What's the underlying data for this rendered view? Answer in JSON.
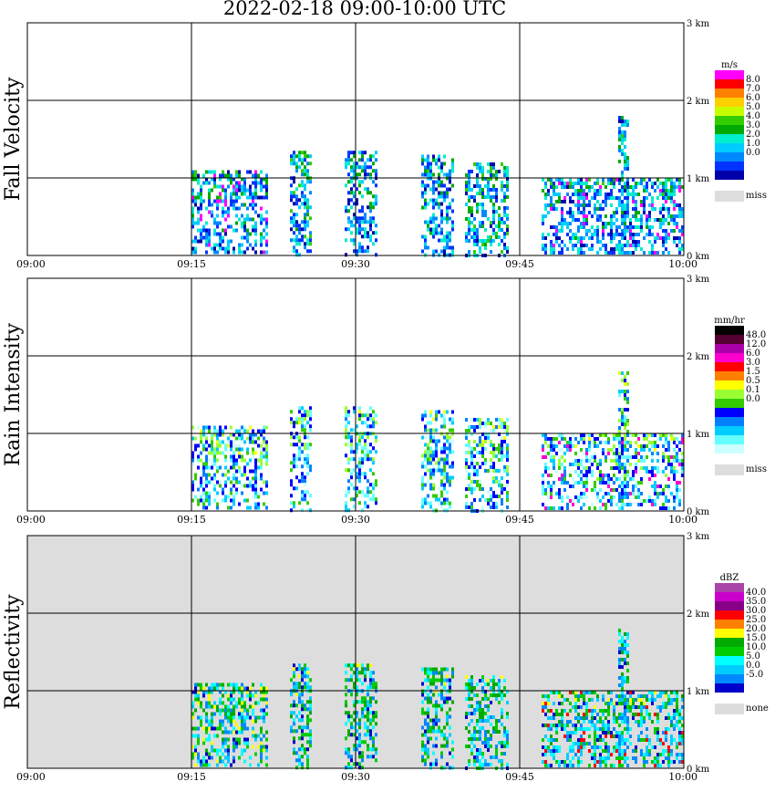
{
  "title": "2022-02-18   09:00-10:00 UTC",
  "chart_data": [
    {
      "type": "heatmap",
      "ylabel": "Fall Velocity",
      "x_ticks": [
        "09:00",
        "09:15",
        "09:30",
        "09:45",
        "10:00"
      ],
      "y_ticks": [
        "0 km",
        "1 km",
        "2 km",
        "3 km"
      ],
      "xlim": [
        "09:00",
        "10:00"
      ],
      "ylim_km": [
        0,
        3.0
      ],
      "background": "#ffffff",
      "legend": {
        "unit": "m/s",
        "labels": [
          "8.0",
          "7.0",
          "6.0",
          "5.0",
          "4.0",
          "3.0",
          "2.0",
          "1.0",
          "0.0"
        ],
        "colors": [
          "#ff00ff",
          "#ff0000",
          "#ff8000",
          "#ffd000",
          "#c8ff00",
          "#33cc00",
          "#00aa00",
          "#00eecc",
          "#00ccff",
          "#0088ff",
          "#0033ff",
          "#0000aa"
        ],
        "missing_label": "miss",
        "missing_color": "#dddddd"
      },
      "cell_color_index": [
        [
          0,
          0,
          0,
          0,
          0,
          0,
          0,
          0,
          0,
          0,
          0,
          0,
          0,
          0,
          0,
          0,
          0,
          0,
          0,
          0,
          0,
          0,
          0,
          0,
          0,
          0,
          0,
          0,
          0,
          0,
          0,
          0,
          0,
          0,
          0,
          0,
          0,
          0,
          0,
          0
        ],
        [
          0,
          0,
          0,
          0,
          0,
          0,
          0,
          0,
          0,
          0,
          0,
          0,
          0,
          0,
          0,
          0,
          0,
          0,
          0,
          0,
          0,
          0,
          0,
          0,
          0,
          0,
          0,
          0,
          0,
          0,
          0,
          0,
          0,
          0,
          0,
          0,
          0,
          0,
          0,
          0
        ],
        [
          0,
          0,
          0,
          0,
          0,
          0,
          0,
          0,
          0,
          0,
          0,
          0,
          0,
          0,
          0,
          0,
          0,
          0,
          0,
          0,
          0,
          0,
          0,
          0,
          0,
          0,
          0,
          0,
          0,
          0,
          0,
          0,
          0,
          0,
          0,
          0,
          0,
          0,
          0,
          0
        ],
        [
          0,
          0,
          0,
          0,
          0,
          0,
          0,
          0,
          0,
          0,
          0,
          0,
          0,
          0,
          0,
          0,
          0,
          0,
          0,
          0,
          0,
          0,
          0,
          0,
          0,
          0,
          0,
          0,
          0,
          0,
          0,
          0,
          0,
          0,
          0,
          0,
          0,
          0,
          0,
          0
        ],
        [
          0,
          0,
          0,
          0,
          0,
          0,
          0,
          0,
          0,
          0,
          0,
          0,
          0,
          0,
          0,
          0,
          0,
          0,
          0,
          0,
          0,
          0,
          0,
          0,
          0,
          0,
          0,
          0,
          0,
          0,
          0,
          0,
          0,
          0,
          0,
          0,
          0,
          0,
          0,
          0
        ],
        [
          0,
          0,
          0,
          0,
          0,
          0,
          0,
          0,
          0,
          0,
          0,
          0,
          0,
          0,
          0,
          0,
          0,
          0,
          0,
          0,
          0,
          0,
          0,
          0,
          0,
          0,
          0,
          0,
          0,
          0,
          0,
          0,
          0,
          0,
          0,
          0,
          0,
          0,
          0,
          0
        ],
        [
          0,
          0,
          0,
          0,
          0,
          0,
          0,
          0,
          0,
          0,
          0,
          0,
          0,
          0,
          0,
          0,
          0,
          0,
          0,
          0,
          0,
          0,
          0,
          0,
          0,
          0,
          0,
          0,
          0,
          0,
          0,
          0,
          0,
          0,
          0,
          0,
          0,
          0,
          0,
          0
        ],
        [
          0,
          0,
          0,
          0,
          0,
          0,
          0,
          0,
          0,
          0,
          0,
          0,
          0,
          0,
          0,
          0,
          0,
          0,
          0,
          0,
          0,
          0,
          0,
          0,
          0,
          0,
          0,
          0,
          0,
          0,
          0,
          0,
          0,
          0,
          0,
          0,
          0,
          0,
          0,
          0
        ],
        [
          0,
          0,
          0,
          0,
          0,
          0,
          0,
          0,
          0,
          0,
          0,
          0,
          0,
          0,
          0,
          0,
          0,
          0,
          0,
          0,
          0,
          0,
          0,
          0,
          0,
          0,
          0,
          0,
          0,
          0,
          0,
          0,
          0,
          0,
          0,
          0,
          0,
          0,
          0,
          0
        ],
        [
          0,
          0,
          0,
          0,
          0,
          0,
          0,
          0,
          0,
          0,
          0,
          0,
          0,
          0,
          0,
          0,
          0,
          0,
          0,
          0,
          0,
          0,
          0,
          0,
          0,
          0,
          0,
          0,
          0,
          0,
          0,
          0,
          0,
          0,
          0,
          0,
          0,
          0,
          0,
          0
        ],
        [
          0,
          0,
          0,
          0,
          0,
          0,
          0,
          0,
          0,
          0,
          0,
          0,
          0,
          0,
          0,
          0,
          0,
          0,
          0,
          0,
          0,
          0,
          0,
          0,
          0,
          0,
          0,
          0,
          0,
          0,
          0,
          0,
          0,
          0,
          0,
          0,
          0,
          0,
          0,
          0
        ],
        [
          0,
          0,
          0,
          0,
          0,
          0,
          0,
          0,
          0,
          0,
          0,
          0,
          0,
          0,
          0,
          0,
          0,
          0,
          0,
          0,
          0,
          0,
          0,
          0,
          0,
          0,
          0,
          0,
          0,
          0,
          0,
          0,
          0,
          0,
          0,
          0,
          0,
          0,
          0,
          0
        ],
        [
          0,
          0,
          0,
          0,
          0,
          0,
          0,
          0,
          0,
          0,
          0,
          0,
          0,
          0,
          0,
          0,
          0,
          0,
          0,
          0,
          0,
          0,
          0,
          0,
          0,
          0,
          0,
          0,
          0,
          0,
          0,
          0,
          0,
          0,
          0,
          0,
          0,
          0,
          0,
          0
        ],
        [
          0,
          0,
          0,
          0,
          0,
          0,
          0,
          0,
          0,
          0,
          0,
          0,
          0,
          0,
          0,
          0,
          0,
          0,
          0,
          0,
          0,
          0,
          0,
          0,
          0,
          0,
          0,
          0,
          0,
          0,
          0,
          0,
          0,
          0,
          0,
          0,
          0,
          0,
          0,
          0
        ],
        [
          0,
          0,
          0,
          0,
          0,
          0,
          0,
          0,
          0,
          0,
          0,
          0,
          0,
          0,
          0,
          0,
          0,
          0,
          0,
          0,
          0,
          0,
          0,
          0,
          0,
          0,
          0,
          0,
          0,
          0,
          0,
          0,
          0,
          0,
          0,
          0,
          0,
          0,
          0,
          0
        ],
        [
          0,
          0,
          0,
          0,
          0,
          0,
          0,
          0,
          0,
          0,
          0,
          0,
          0,
          0,
          0,
          0,
          0,
          0,
          0,
          0,
          0,
          0,
          0,
          0,
          0,
          0,
          0,
          0,
          0,
          0,
          0,
          0,
          0,
          0,
          0,
          0,
          0,
          0,
          0,
          0
        ],
        [
          0,
          0,
          0,
          0,
          0,
          0,
          0,
          0,
          0,
          0,
          0,
          0,
          0,
          0,
          0,
          0,
          0,
          0,
          0,
          0,
          0,
          0,
          0,
          0,
          0,
          0,
          0,
          0,
          0,
          0,
          0,
          0,
          0,
          0,
          0,
          0,
          0,
          0,
          0,
          0
        ],
        [
          0,
          0,
          0,
          0,
          0,
          0,
          0,
          0,
          0,
          0,
          0,
          0,
          0,
          0,
          0,
          0,
          0,
          0,
          0,
          0,
          0,
          0,
          0,
          0,
          0,
          0,
          0,
          0,
          0,
          0,
          0,
          0,
          0,
          0,
          0,
          0,
          0,
          0,
          0,
          0
        ],
        [
          0,
          0,
          0,
          0,
          0,
          0,
          0,
          0,
          0,
          0,
          0,
          0,
          0,
          0,
          0,
          0,
          0,
          0,
          0,
          0,
          0,
          0,
          0,
          0,
          0,
          0,
          0,
          0,
          0,
          0,
          0,
          0,
          0,
          0,
          0,
          0,
          0,
          0,
          0,
          0
        ],
        [
          0,
          0,
          0,
          0,
          0,
          0,
          0,
          0,
          0,
          0,
          0,
          0,
          0,
          0,
          0,
          0,
          0,
          0,
          0,
          0,
          0,
          0,
          0,
          0,
          0,
          0,
          0,
          0,
          0,
          0,
          0,
          0,
          0,
          0,
          0,
          0,
          0,
          0,
          0,
          0
        ]
      ],
      "echo_regions": [
        {
          "start": "09:15",
          "end": "09:22",
          "top_km": 1.1,
          "core_color": "#ff00ff"
        },
        {
          "start": "09:24",
          "end": "09:26",
          "top_km": 1.35,
          "core_color": "#33cc00"
        },
        {
          "start": "09:29",
          "end": "09:32",
          "top_km": 1.35,
          "core_color": "#0033ff"
        },
        {
          "start": "09:36",
          "end": "09:39",
          "top_km": 1.3,
          "core_color": "#0033ff"
        },
        {
          "start": "09:40",
          "end": "09:44",
          "top_km": 1.2,
          "core_color": "#33cc00"
        },
        {
          "start": "09:47",
          "end": "10:00",
          "top_km": 1.0,
          "core_color": "#ff00ff"
        },
        {
          "start": "09:54",
          "end": "09:55",
          "top_km": 1.8,
          "core_color": "#0088ff"
        }
      ]
    },
    {
      "type": "heatmap",
      "ylabel": "Rain Intensity",
      "x_ticks": [
        "09:00",
        "09:15",
        "09:30",
        "09:45",
        "10:00"
      ],
      "y_ticks": [
        "0 km",
        "1 km",
        "2 km",
        "3 km"
      ],
      "xlim": [
        "09:00",
        "10:00"
      ],
      "ylim_km": [
        0,
        3.0
      ],
      "background": "#ffffff",
      "legend": {
        "unit": "mm/hr",
        "labels": [
          "48.0",
          "12.0",
          "6.0",
          "3.0",
          "1.5",
          "0.5",
          "0.1",
          "0.0"
        ],
        "colors": [
          "#000000",
          "#550033",
          "#aa00aa",
          "#ff00cc",
          "#ff0000",
          "#ff8000",
          "#ffff00",
          "#99ff33",
          "#33cc00",
          "#0000ff",
          "#0080ff",
          "#00ccff",
          "#66ffff",
          "#ccffff"
        ],
        "missing_label": "miss",
        "missing_color": "#dddddd"
      },
      "echo_regions": [
        {
          "start": "09:15",
          "end": "09:22",
          "top_km": 1.1,
          "core_color": "#0000ff"
        },
        {
          "start": "09:24",
          "end": "09:26",
          "top_km": 1.35,
          "core_color": "#0000ff"
        },
        {
          "start": "09:29",
          "end": "09:32",
          "top_km": 1.35,
          "core_color": "#66ffff"
        },
        {
          "start": "09:36",
          "end": "09:39",
          "top_km": 1.3,
          "core_color": "#0080ff"
        },
        {
          "start": "09:40",
          "end": "09:44",
          "top_km": 1.2,
          "core_color": "#0000ff"
        },
        {
          "start": "09:47",
          "end": "10:00",
          "top_km": 1.0,
          "core_color": "#ff00cc"
        },
        {
          "start": "09:54",
          "end": "09:55",
          "top_km": 1.8,
          "core_color": "#0080ff"
        }
      ]
    },
    {
      "type": "heatmap",
      "ylabel": "Reflectivity",
      "x_ticks": [
        "09:00",
        "09:15",
        "09:30",
        "09:45",
        "10:00"
      ],
      "y_ticks": [
        "0 km",
        "1 km",
        "2 km",
        "3 km"
      ],
      "xlim": [
        "09:00",
        "10:00"
      ],
      "ylim_km": [
        0,
        3.0
      ],
      "background": "#dddddd",
      "legend": {
        "unit": "dBZ",
        "labels": [
          "40.0",
          "35.0",
          "30.0",
          "25.0",
          "20.0",
          "15.0",
          "10.0",
          "5.0",
          "0.0",
          "-5.0"
        ],
        "colors": [
          "#aa44aa",
          "#cc00cc",
          "#880088",
          "#ff0000",
          "#ff8000",
          "#ffff00",
          "#00aa00",
          "#00cc00",
          "#00ffff",
          "#00ccff",
          "#0088ff",
          "#0000cc"
        ],
        "missing_label": "none",
        "missing_color": "#dddddd"
      },
      "echo_regions": [
        {
          "start": "09:15",
          "end": "09:22",
          "top_km": 1.1,
          "core_color": "#ffff00"
        },
        {
          "start": "09:24",
          "end": "09:26",
          "top_km": 1.35,
          "core_color": "#00aa00"
        },
        {
          "start": "09:29",
          "end": "09:32",
          "top_km": 1.35,
          "core_color": "#00aa00"
        },
        {
          "start": "09:36",
          "end": "09:39",
          "top_km": 1.3,
          "core_color": "#00aa00"
        },
        {
          "start": "09:40",
          "end": "09:44",
          "top_km": 1.2,
          "core_color": "#00aa00"
        },
        {
          "start": "09:47",
          "end": "10:00",
          "top_km": 1.0,
          "core_color": "#ff0000"
        },
        {
          "start": "09:54",
          "end": "09:55",
          "top_km": 1.8,
          "core_color": "#00ccff"
        }
      ]
    }
  ]
}
